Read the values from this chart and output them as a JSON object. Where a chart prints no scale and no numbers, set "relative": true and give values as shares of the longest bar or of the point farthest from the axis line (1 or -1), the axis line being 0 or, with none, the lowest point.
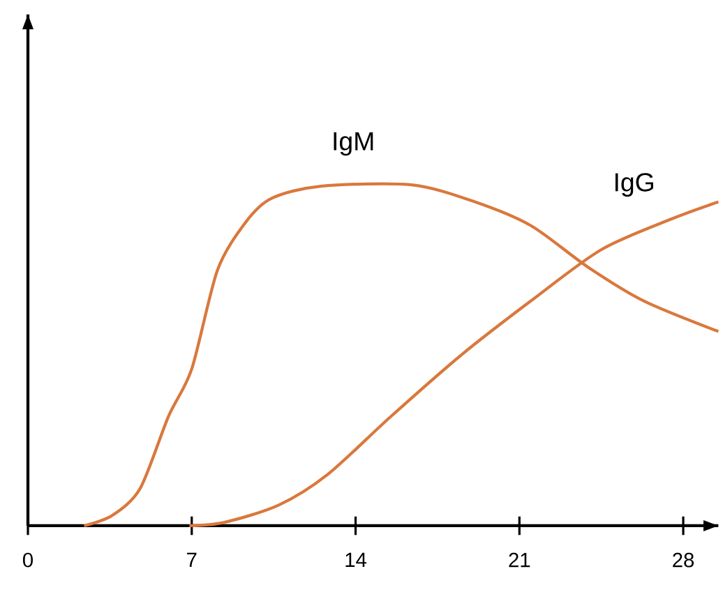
{
  "chart_data": {
    "type": "line",
    "relative": true,
    "xlim": [
      0,
      29.5
    ],
    "xticks": [
      0,
      7,
      14,
      21,
      28
    ],
    "tick_labels": "x",
    "grid": false,
    "legend": false,
    "marker": "none",
    "line_style": "solid",
    "series": [
      {
        "name": "IgM",
        "color": "#d9783c",
        "x": [
          2.4,
          3.6,
          4.8,
          6.0,
          7.0,
          8.1,
          9.3,
          10.4,
          12.5,
          16.4,
          19.1,
          21.5,
          23.9,
          26.3,
          29.5
        ],
        "values": [
          0,
          0.03,
          0.11,
          0.32,
          0.46,
          0.75,
          0.89,
          0.96,
          0.996,
          1,
          0.95,
          0.88,
          0.76,
          0.66,
          0.57
        ]
      },
      {
        "name": "IgG",
        "color": "#d9783c",
        "x": [
          6.9,
          8.4,
          10.7,
          12.8,
          15.5,
          18.5,
          21.5,
          24.5,
          27.5,
          29.5
        ],
        "values": [
          0,
          0.01,
          0.06,
          0.15,
          0.32,
          0.5,
          0.66,
          0.81,
          0.9,
          0.95
        ]
      }
    ]
  }
}
